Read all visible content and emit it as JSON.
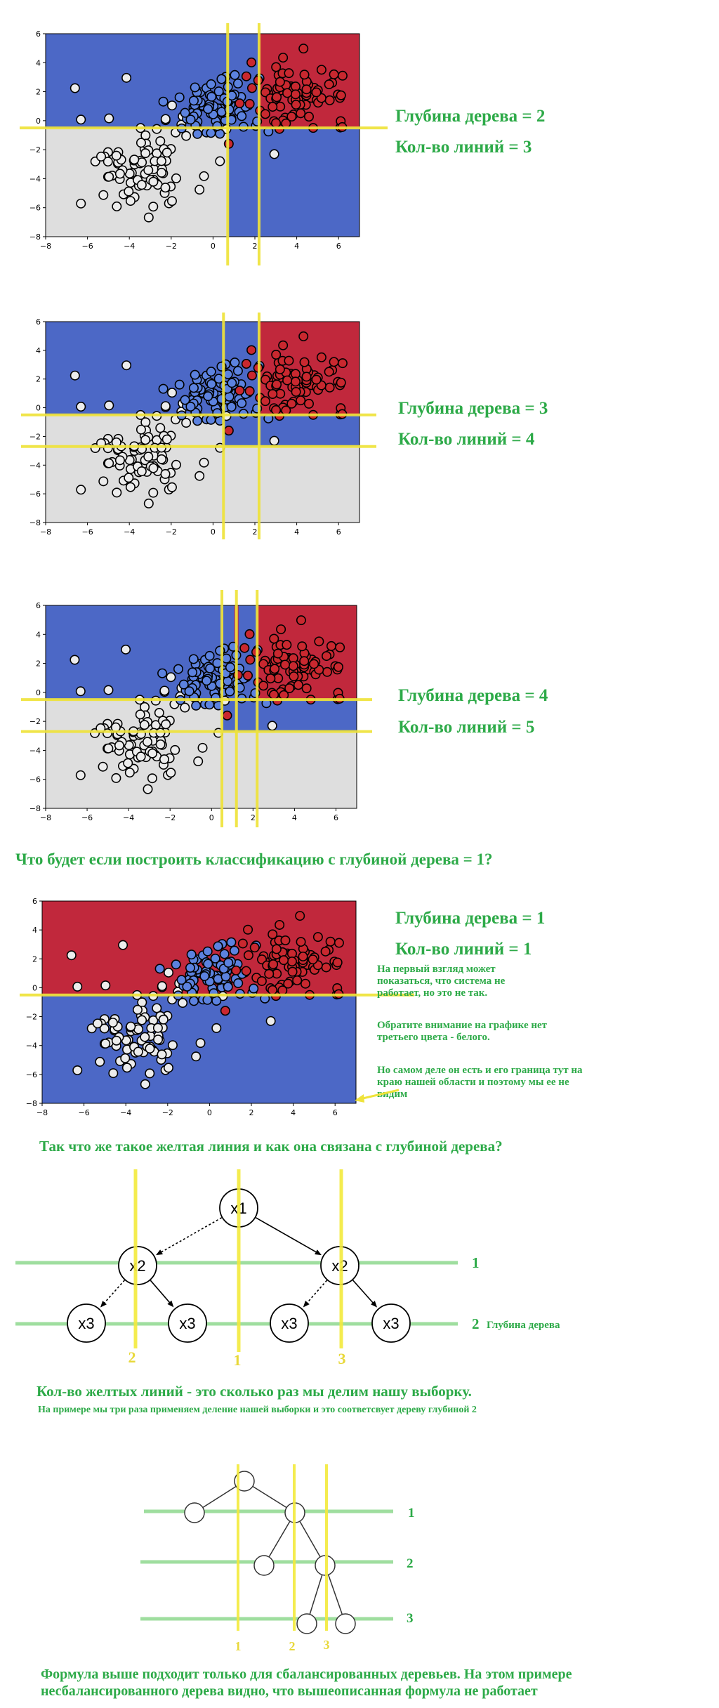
{
  "chart_data": [
    {
      "type": "scatter",
      "xlim": [
        -8,
        7
      ],
      "ylim": [
        -8,
        6
      ],
      "x_ticks": [
        -8,
        -6,
        -4,
        -2,
        0,
        2,
        4,
        6
      ],
      "y_ticks": [
        6,
        4,
        2,
        0,
        -2,
        -4,
        -6,
        -8
      ],
      "regions": [
        {
          "x": [
            -8,
            2.2
          ],
          "y": [
            -0.5,
            6
          ],
          "color": "blue"
        },
        {
          "x": [
            2.2,
            7
          ],
          "y": [
            -0.5,
            6
          ],
          "color": "red"
        },
        {
          "x": [
            -8,
            0.7
          ],
          "y": [
            -8,
            -0.5
          ],
          "color": "white"
        },
        {
          "x": [
            0.7,
            7
          ],
          "y": [
            -8,
            -0.5
          ],
          "color": "blue"
        }
      ],
      "split_lines": {
        "vertical": [
          0.7,
          2.2
        ],
        "horizontal": [
          -0.5
        ]
      }
    },
    {
      "type": "scatter",
      "xlim": [
        -8,
        7
      ],
      "ylim": [
        -8,
        6
      ],
      "x_ticks": [
        -8,
        -6,
        -4,
        -2,
        0,
        2,
        4,
        6
      ],
      "y_ticks": [
        6,
        4,
        2,
        0,
        -2,
        -4,
        -6,
        -8
      ],
      "regions": [
        {
          "x": [
            -8,
            2.2
          ],
          "y": [
            -0.5,
            6
          ],
          "color": "blue"
        },
        {
          "x": [
            2.2,
            7
          ],
          "y": [
            -0.5,
            6
          ],
          "color": "red"
        },
        {
          "x": [
            -8,
            0.5
          ],
          "y": [
            -2.7,
            -0.5
          ],
          "color": "white"
        },
        {
          "x": [
            0.5,
            7
          ],
          "y": [
            -2.7,
            -0.5
          ],
          "color": "blue"
        },
        {
          "x": [
            -8,
            7
          ],
          "y": [
            -8,
            -2.7
          ],
          "color": "white"
        }
      ],
      "split_lines": {
        "vertical": [
          0.5,
          2.2
        ],
        "horizontal": [
          -0.5,
          -2.7
        ]
      }
    },
    {
      "type": "scatter",
      "xlim": [
        -8,
        7
      ],
      "ylim": [
        -8,
        6
      ],
      "x_ticks": [
        -8,
        -6,
        -4,
        -2,
        0,
        2,
        4,
        6
      ],
      "y_ticks": [
        6,
        4,
        2,
        0,
        -2,
        -4,
        -6,
        -8
      ],
      "regions": [
        {
          "x": [
            -8,
            2.2
          ],
          "y": [
            -0.5,
            6
          ],
          "color": "blue"
        },
        {
          "x": [
            1.1,
            1.3
          ],
          "y": [
            2.3,
            6
          ],
          "color": "red"
        },
        {
          "x": [
            2.2,
            7
          ],
          "y": [
            -0.5,
            6
          ],
          "color": "red"
        },
        {
          "x": [
            -8,
            0.5
          ],
          "y": [
            -2.7,
            -0.5
          ],
          "color": "white"
        },
        {
          "x": [
            0.5,
            7
          ],
          "y": [
            -2.7,
            -0.5
          ],
          "color": "blue"
        },
        {
          "x": [
            -8,
            7
          ],
          "y": [
            -8,
            -2.7
          ],
          "color": "white"
        }
      ],
      "split_lines": {
        "vertical": [
          0.5,
          1.2,
          2.2
        ],
        "horizontal": [
          -0.5,
          -2.7
        ]
      }
    },
    {
      "type": "scatter",
      "xlim": [
        -8,
        7
      ],
      "ylim": [
        -8,
        6
      ],
      "x_ticks": [
        -8,
        -6,
        -4,
        -2,
        0,
        2,
        4,
        6
      ],
      "y_ticks": [
        6,
        4,
        2,
        0,
        -2,
        -4,
        -6,
        -8
      ],
      "regions": [
        {
          "x": [
            -8,
            7
          ],
          "y": [
            -0.5,
            6
          ],
          "color": "red"
        },
        {
          "x": [
            -8,
            7
          ],
          "y": [
            -8,
            -0.5
          ],
          "color": "blue"
        }
      ],
      "split_lines": {
        "vertical": [],
        "horizontal": [
          -0.5
        ]
      }
    }
  ],
  "palette": {
    "blue_region": "#4c68c6",
    "red_region": "#c1283c",
    "white_region": "#dedede",
    "point_blue": "#5c82df",
    "point_red": "#c9282f",
    "point_white": "#ececec",
    "split_line": "#efe33a",
    "caption_green": "#2daa48"
  },
  "texts": {
    "c1_depth": "Глубина дерева = 2",
    "c1_lines": "Кол-во линий = 3",
    "c2_depth": "Глубина дерева = 3",
    "c2_lines": "Кол-во линий = 4",
    "c3_depth": "Глубина дерева = 4",
    "c3_lines": "Кол-во линий = 5",
    "question": "Что будет если построить классификацию с глубиной дерева = 1?",
    "c4_depth": "Глубина дерева = 1",
    "c4_lines": "Кол-во линий = 1",
    "note_1": "На первый взгляд может показаться, что система не работает, но это не так.",
    "note_2": "Обратите внимание на графике нет третьего цвета - белого.",
    "note_3": "Но самом деле он есть и его граница тут на краю нашей области и поэтому мы ее не видим",
    "section_q": "Так что же такое желтая линия и как она связана с глубиной дерева?",
    "explain_main": "Кол-во желтых линий - это сколько раз мы делим нашу выборку.",
    "explain_sub": "На примере мы три раза применяем деление нашей выборки и это соответсвует дереву глубиной 2",
    "formula_note": "Формула выше подходит только для сбалансированных деревьев. На этом примере несбалансированного дерева видно, что вышеописанная формула не работает"
  },
  "tree1": {
    "nodes": [
      "x1",
      "x2",
      "x2",
      "x3",
      "x3",
      "x3",
      "x3"
    ],
    "level_labels": [
      "1",
      "2"
    ],
    "depth_label": "Глубина дерева",
    "yellow_labels": [
      "2",
      "1",
      "3"
    ]
  },
  "tree2": {
    "level_labels": [
      "1",
      "2",
      "3"
    ],
    "yellow_labels": [
      "1",
      "2",
      "3"
    ]
  }
}
